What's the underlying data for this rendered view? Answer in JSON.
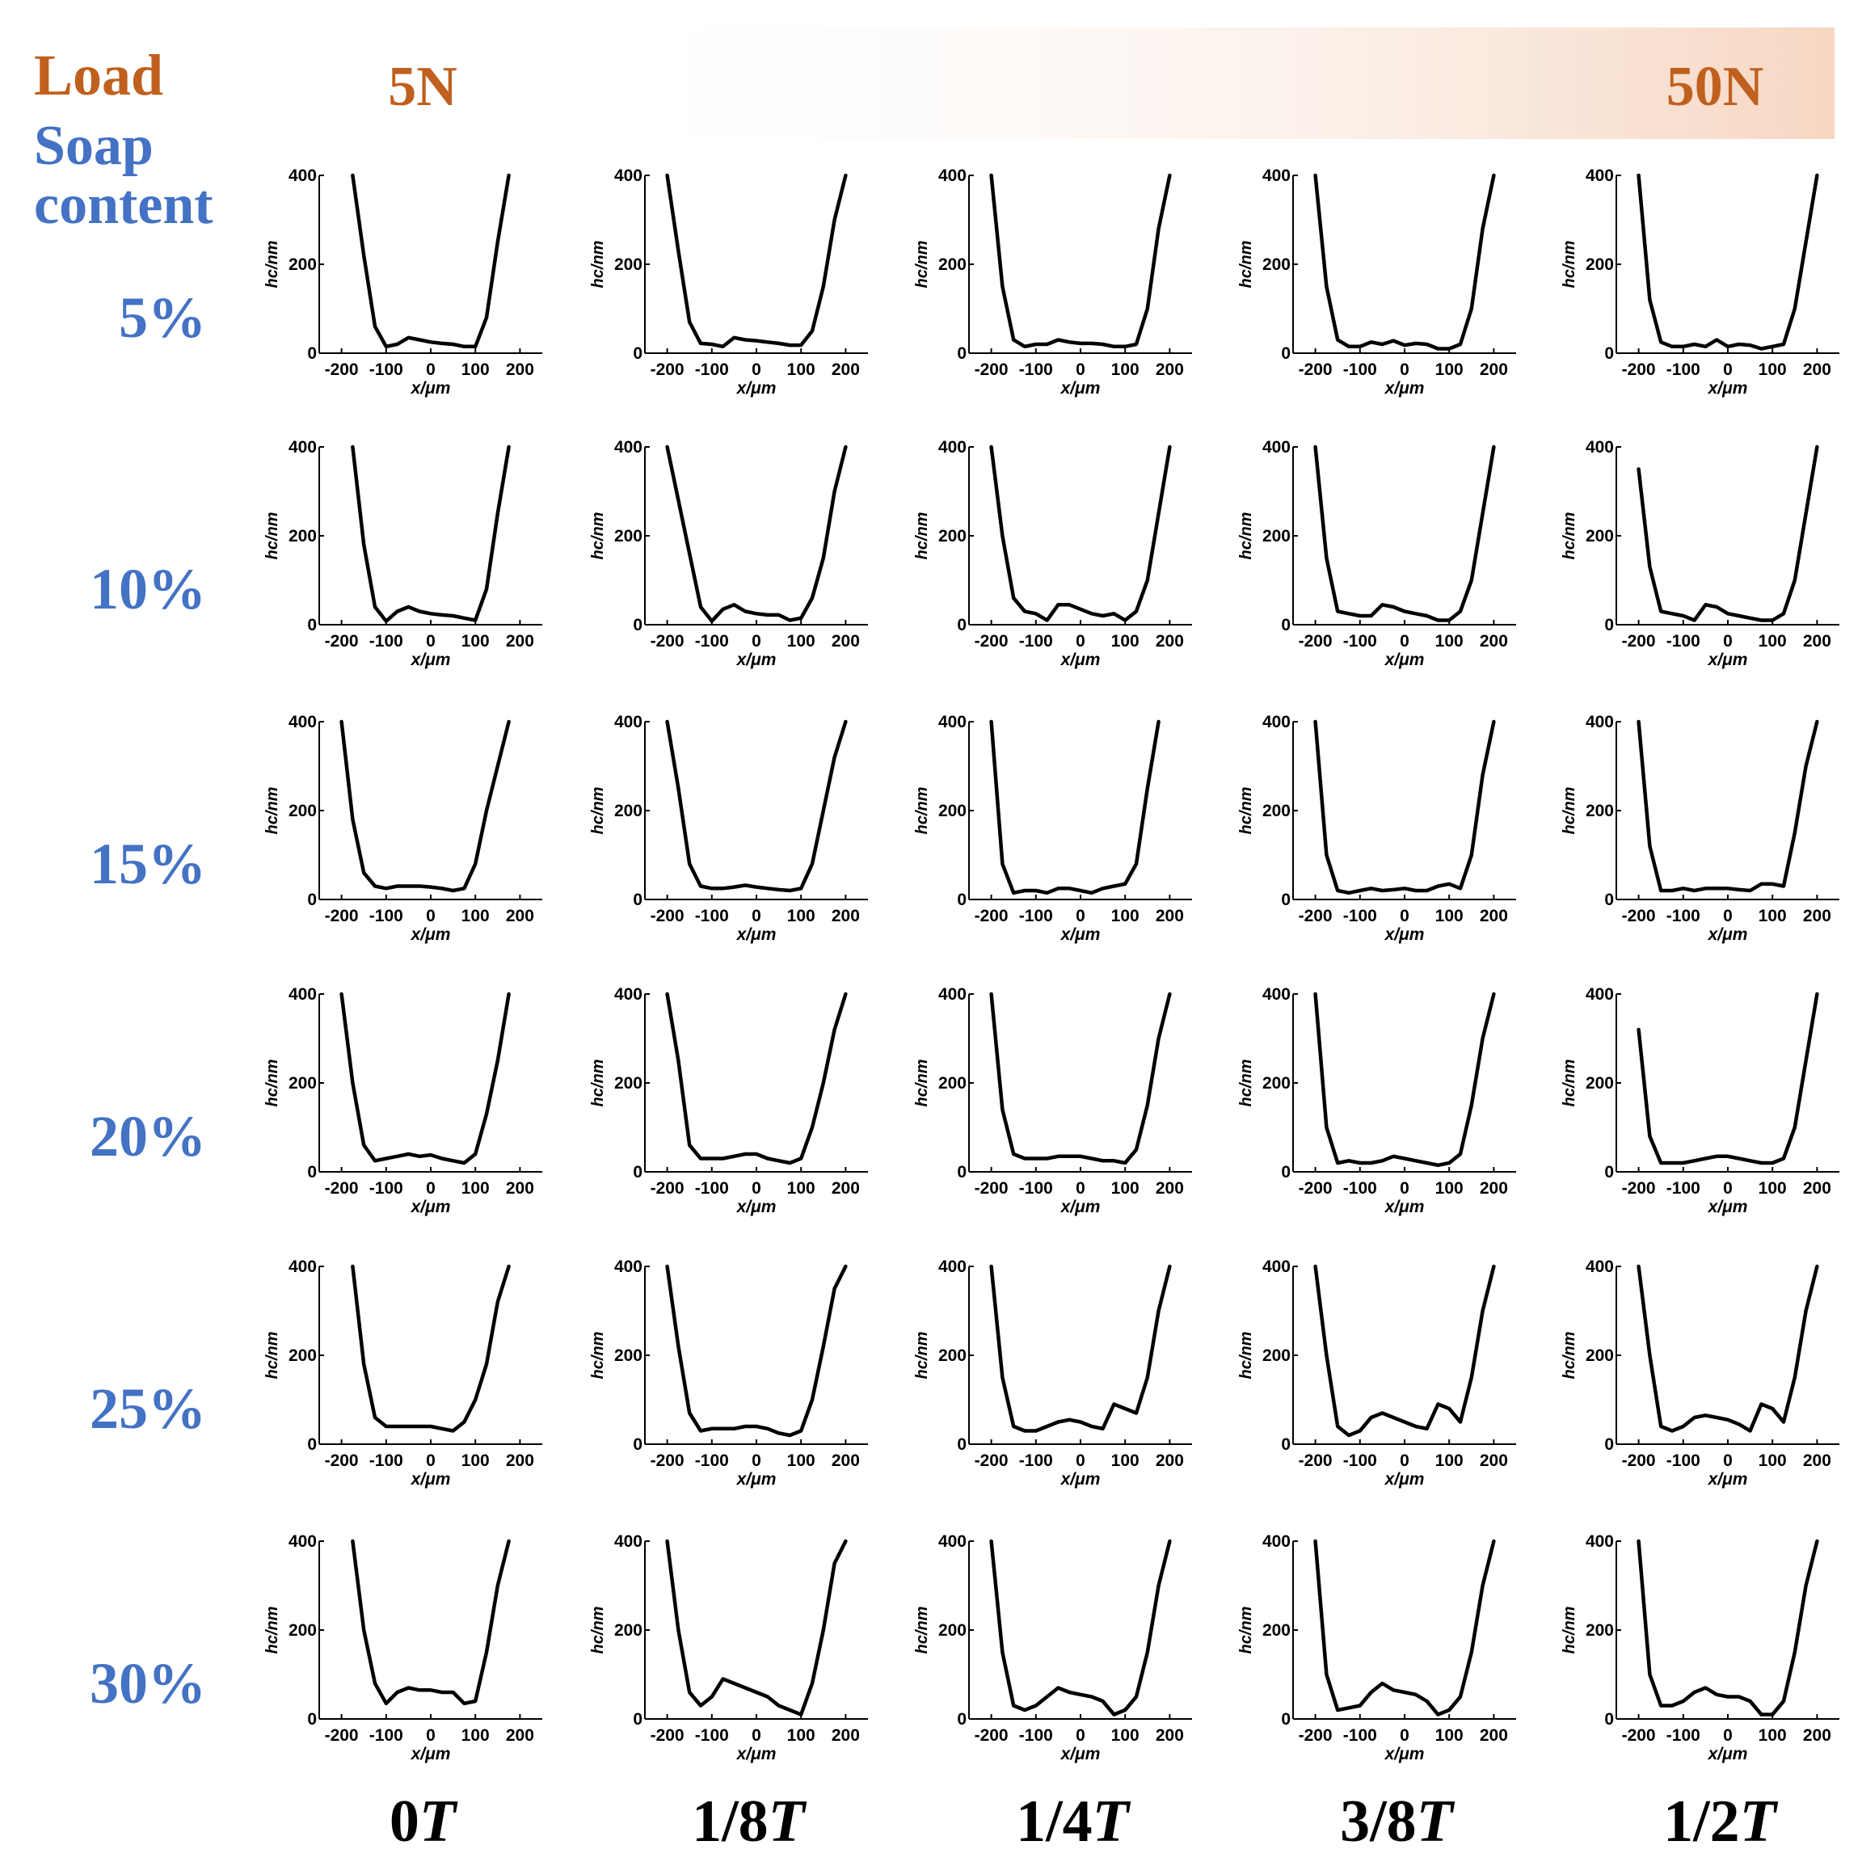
{
  "header": {
    "load_label": "Load",
    "soap_label_line1": "Soap",
    "soap_label_line2": "content",
    "load_min": "5N",
    "load_max": "50N"
  },
  "colors": {
    "load": "#c0601e",
    "soap": "#4472c4",
    "gradient_end": "#f6d6c2",
    "curve": "#000000"
  },
  "rows": [
    "5%",
    "10%",
    "15%",
    "20%",
    "25%",
    "30%"
  ],
  "cols": [
    "0T",
    "1/8T",
    "1/4T",
    "3/8T",
    "1/2T"
  ],
  "chart_data": {
    "type": "line",
    "layout": "grid",
    "xlabel": "x/μm",
    "ylabel": "hc/nm",
    "xlim": [
      -250,
      250
    ],
    "ylim": [
      0,
      400
    ],
    "xticks": [
      -200,
      -100,
      0,
      100,
      200
    ],
    "yticks": [
      0,
      200,
      400
    ],
    "grid": false,
    "x": [
      -200,
      -175,
      -150,
      -125,
      -100,
      -75,
      -50,
      -25,
      0,
      25,
      50,
      75,
      100,
      125,
      150,
      175,
      200
    ],
    "panels": [
      [
        [
          null,
          400,
          220,
          60,
          15,
          20,
          35,
          30,
          25,
          22,
          20,
          15,
          15,
          80,
          250,
          400,
          null
        ],
        [
          400,
          230,
          70,
          22,
          20,
          15,
          35,
          30,
          28,
          25,
          22,
          18,
          18,
          50,
          150,
          300,
          400
        ],
        [
          400,
          150,
          30,
          15,
          20,
          20,
          30,
          25,
          22,
          22,
          20,
          15,
          15,
          20,
          100,
          280,
          400
        ],
        [
          400,
          150,
          30,
          15,
          15,
          25,
          20,
          28,
          18,
          22,
          20,
          10,
          10,
          20,
          100,
          280,
          400
        ],
        [
          400,
          120,
          25,
          15,
          15,
          20,
          15,
          30,
          15,
          20,
          18,
          10,
          15,
          20,
          100,
          250,
          400
        ]
      ],
      [
        [
          null,
          400,
          180,
          40,
          8,
          30,
          40,
          30,
          25,
          22,
          20,
          15,
          10,
          80,
          250,
          400,
          null
        ],
        [
          400,
          280,
          160,
          40,
          8,
          35,
          45,
          30,
          25,
          22,
          22,
          10,
          15,
          60,
          150,
          300,
          400
        ],
        [
          400,
          200,
          60,
          30,
          25,
          10,
          45,
          45,
          35,
          25,
          20,
          25,
          10,
          30,
          100,
          250,
          400
        ],
        [
          400,
          150,
          30,
          25,
          20,
          20,
          45,
          40,
          30,
          25,
          20,
          10,
          10,
          30,
          100,
          250,
          400
        ],
        [
          350,
          130,
          30,
          25,
          20,
          10,
          45,
          40,
          25,
          20,
          15,
          10,
          10,
          25,
          100,
          250,
          400
        ]
      ],
      [
        [
          400,
          180,
          60,
          30,
          25,
          30,
          30,
          30,
          28,
          25,
          20,
          25,
          80,
          200,
          300,
          400,
          null
        ],
        [
          400,
          250,
          80,
          30,
          25,
          25,
          28,
          32,
          28,
          25,
          22,
          20,
          25,
          80,
          200,
          320,
          400
        ],
        [
          400,
          80,
          15,
          20,
          20,
          15,
          25,
          25,
          20,
          15,
          25,
          30,
          35,
          80,
          250,
          400,
          null
        ],
        [
          400,
          100,
          20,
          15,
          20,
          25,
          20,
          22,
          25,
          20,
          20,
          30,
          35,
          25,
          100,
          280,
          400
        ],
        [
          400,
          120,
          20,
          20,
          25,
          20,
          25,
          25,
          25,
          22,
          20,
          35,
          35,
          30,
          150,
          300,
          400
        ]
      ],
      [
        [
          400,
          200,
          60,
          25,
          30,
          35,
          40,
          35,
          38,
          30,
          25,
          20,
          40,
          130,
          250,
          400,
          null
        ],
        [
          400,
          250,
          60,
          30,
          30,
          30,
          35,
          40,
          40,
          30,
          25,
          20,
          30,
          100,
          200,
          320,
          400
        ],
        [
          400,
          140,
          40,
          30,
          30,
          30,
          35,
          35,
          35,
          30,
          25,
          25,
          20,
          50,
          150,
          300,
          400
        ],
        [
          400,
          100,
          20,
          25,
          20,
          20,
          25,
          35,
          30,
          25,
          20,
          15,
          20,
          40,
          150,
          300,
          400
        ],
        [
          320,
          80,
          20,
          20,
          20,
          25,
          30,
          35,
          35,
          30,
          25,
          20,
          20,
          30,
          100,
          250,
          400
        ]
      ],
      [
        [
          null,
          400,
          180,
          60,
          40,
          40,
          40,
          40,
          40,
          35,
          30,
          50,
          100,
          180,
          320,
          400,
          null
        ],
        [
          400,
          220,
          70,
          30,
          35,
          35,
          35,
          40,
          40,
          35,
          25,
          20,
          30,
          100,
          220,
          350,
          400
        ],
        [
          400,
          150,
          40,
          30,
          30,
          40,
          50,
          55,
          50,
          40,
          35,
          90,
          80,
          70,
          150,
          300,
          400
        ],
        [
          400,
          200,
          40,
          20,
          30,
          60,
          70,
          60,
          50,
          40,
          35,
          90,
          80,
          50,
          150,
          300,
          400
        ],
        [
          400,
          200,
          40,
          30,
          40,
          60,
          65,
          60,
          55,
          45,
          30,
          90,
          80,
          50,
          150,
          300,
          400
        ]
      ],
      [
        [
          null,
          400,
          200,
          80,
          35,
          60,
          70,
          65,
          65,
          60,
          60,
          35,
          40,
          150,
          300,
          400,
          null
        ],
        [
          400,
          200,
          60,
          30,
          50,
          90,
          80,
          70,
          60,
          50,
          30,
          20,
          10,
          80,
          200,
          350,
          400
        ],
        [
          400,
          150,
          30,
          20,
          30,
          50,
          70,
          60,
          55,
          50,
          40,
          10,
          20,
          50,
          150,
          300,
          400
        ],
        [
          400,
          100,
          20,
          25,
          30,
          60,
          80,
          65,
          60,
          55,
          40,
          10,
          20,
          50,
          150,
          300,
          400
        ],
        [
          400,
          100,
          30,
          30,
          40,
          60,
          70,
          55,
          50,
          50,
          40,
          10,
          10,
          40,
          150,
          300,
          400
        ]
      ]
    ]
  }
}
